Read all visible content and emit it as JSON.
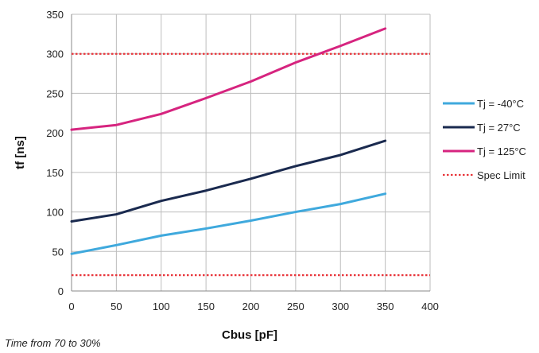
{
  "chart_data": {
    "type": "line",
    "xlabel": "Cbus [pF]",
    "ylabel": "tf [ns]",
    "xlim": [
      0,
      400
    ],
    "ylim": [
      0,
      350
    ],
    "x_ticks": [
      0,
      50,
      100,
      150,
      200,
      250,
      300,
      350,
      400
    ],
    "y_ticks": [
      0,
      50,
      100,
      150,
      200,
      250,
      300,
      350
    ],
    "grid": true,
    "legend_position": "right",
    "x": [
      0,
      50,
      100,
      150,
      200,
      250,
      300,
      350
    ],
    "series": [
      {
        "name": "Tj = -40°C",
        "color": "#3fa9dd",
        "values": [
          47,
          58,
          70,
          79,
          89,
          100,
          110,
          123
        ]
      },
      {
        "name": "Tj = 27°C",
        "color": "#1a2a4f",
        "values": [
          88,
          97,
          114,
          127,
          142,
          158,
          172,
          190
        ]
      },
      {
        "name": "Tj = 125°C",
        "color": "#d6247f",
        "values": [
          204,
          210,
          224,
          244,
          265,
          289,
          310,
          332
        ]
      }
    ],
    "spec_limit": {
      "name": "Spec Limit",
      "color": "#e8343a",
      "values": [
        20,
        300
      ]
    },
    "footnote": "Time from 70 to 30%"
  }
}
